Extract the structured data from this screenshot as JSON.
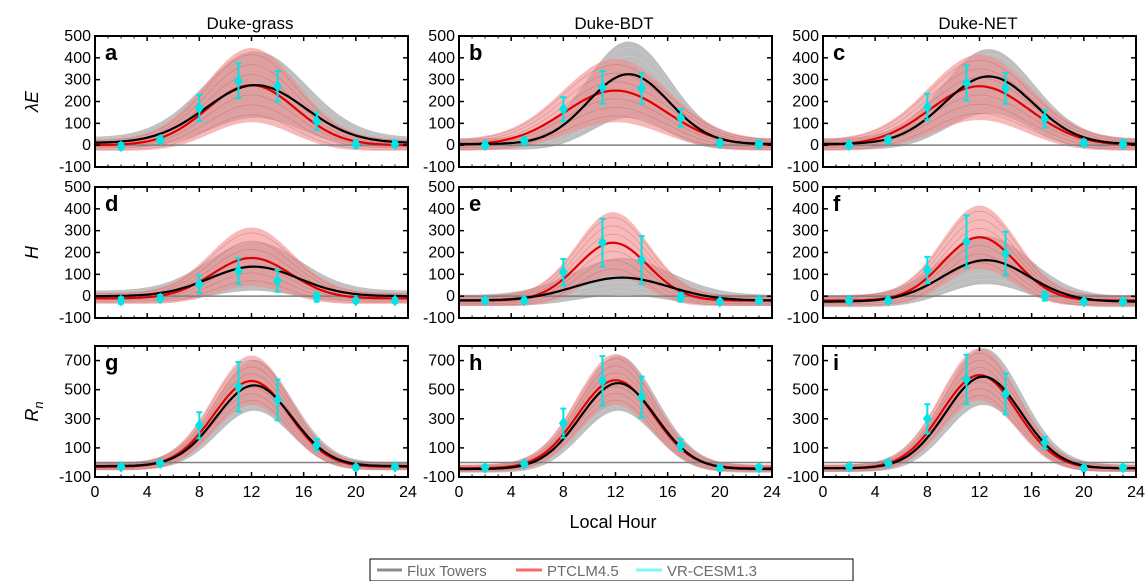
{
  "figure": {
    "column_titles": [
      "Duke-grass",
      "Duke-BDT",
      "Duke-NET"
    ],
    "xlabel": "Local Hour",
    "x_ticks": [
      0,
      4,
      8,
      12,
      16,
      20,
      24
    ],
    "xlim": [
      0,
      24
    ],
    "rows": [
      {
        "ylabel_main": "λE",
        "ylabel_sub": "",
        "ylim": [
          -100,
          500
        ],
        "y_ticks": [
          -100,
          0,
          100,
          200,
          300,
          400,
          500
        ],
        "zero_line": 0
      },
      {
        "ylabel_main": "H",
        "ylabel_sub": "",
        "ylim": [
          -100,
          500
        ],
        "y_ticks": [
          -100,
          0,
          100,
          200,
          300,
          400,
          500
        ],
        "zero_line": 0
      },
      {
        "ylabel_main": "R",
        "ylabel_sub": "n",
        "ylim": [
          -100,
          800
        ],
        "y_ticks": [
          -100,
          100,
          300,
          500,
          700
        ],
        "zero_line": 0
      }
    ],
    "legend": {
      "items": [
        {
          "label": "Flux Towers",
          "color": "#8c8c8c"
        },
        {
          "label": "PTCLM4.5",
          "color": "#ff6666"
        },
        {
          "label": "VR-CESM1.3",
          "color": "#7ff7f7"
        }
      ]
    },
    "colors": {
      "tower_line": "#000000",
      "tower_band": "#a8a8a8",
      "model_line": "#e00000",
      "model_band": "#f28a8a",
      "vr_marker": "#00e5e5",
      "zero_line": "#808080"
    }
  },
  "chart_data": [
    {
      "type": "line",
      "panel_label": "a",
      "column": "Duke-grass",
      "variable": "λE",
      "xlim": [
        0,
        24
      ],
      "ylim": [
        -100,
        500
      ],
      "tower": {
        "peak": 275,
        "peak_hour": 12.3,
        "half_width": 3.8,
        "night": 10,
        "band_low": 150,
        "band_high": 405
      },
      "ptclm": {
        "peak": 275,
        "peak_hour": 12.0,
        "half_width": 3.4,
        "night": 0,
        "band_low": 130,
        "band_high": 420
      },
      "vr_cesm": {
        "x": [
          2,
          5,
          8,
          11,
          14,
          17,
          20,
          23
        ],
        "y": [
          -5,
          25,
          170,
          295,
          270,
          110,
          5,
          5
        ],
        "err": [
          15,
          15,
          60,
          80,
          70,
          40,
          15,
          15
        ]
      }
    },
    {
      "type": "line",
      "panel_label": "b",
      "column": "Duke-BDT",
      "variable": "λE",
      "xlim": [
        0,
        24
      ],
      "ylim": [
        -100,
        500
      ],
      "tower": {
        "peak": 325,
        "peak_hour": 13.0,
        "half_width": 3.1,
        "night": 5,
        "band_low": 150,
        "band_high": 450
      },
      "ptclm": {
        "peak": 250,
        "peak_hour": 12.0,
        "half_width": 3.9,
        "night": 0,
        "band_low": 130,
        "band_high": 370
      },
      "vr_cesm": {
        "x": [
          2,
          5,
          8,
          11,
          14,
          17,
          20,
          23
        ],
        "y": [
          0,
          20,
          165,
          265,
          260,
          125,
          10,
          5
        ],
        "err": [
          15,
          15,
          55,
          75,
          70,
          40,
          15,
          15
        ]
      }
    },
    {
      "type": "line",
      "panel_label": "c",
      "column": "Duke-NET",
      "variable": "λE",
      "xlim": [
        0,
        24
      ],
      "ylim": [
        -100,
        500
      ],
      "tower": {
        "peak": 315,
        "peak_hour": 12.7,
        "half_width": 3.4,
        "night": 5,
        "band_low": 170,
        "band_high": 415
      },
      "ptclm": {
        "peak": 270,
        "peak_hour": 12.0,
        "half_width": 3.8,
        "night": 0,
        "band_low": 140,
        "band_high": 390
      },
      "vr_cesm": {
        "x": [
          2,
          5,
          8,
          11,
          14,
          17,
          20,
          23
        ],
        "y": [
          0,
          25,
          175,
          285,
          260,
          120,
          10,
          5
        ],
        "err": [
          15,
          15,
          60,
          80,
          70,
          40,
          15,
          15
        ]
      }
    },
    {
      "type": "line",
      "panel_label": "d",
      "column": "Duke-grass",
      "variable": "H",
      "xlim": [
        0,
        24
      ],
      "ylim": [
        -100,
        500
      ],
      "tower": {
        "peak": 135,
        "peak_hour": 12.2,
        "half_width": 3.4,
        "night": 0,
        "band_low": 50,
        "band_high": 225
      },
      "ptclm": {
        "peak": 175,
        "peak_hour": 12.0,
        "half_width": 3.0,
        "night": -10,
        "band_low": 70,
        "band_high": 290
      },
      "vr_cesm": {
        "x": [
          2,
          5,
          8,
          11,
          14,
          17,
          20,
          23
        ],
        "y": [
          -20,
          -10,
          55,
          115,
          70,
          -5,
          -20,
          -20
        ],
        "err": [
          15,
          15,
          40,
          60,
          50,
          20,
          10,
          10
        ]
      }
    },
    {
      "type": "line",
      "panel_label": "e",
      "column": "Duke-BDT",
      "variable": "H",
      "xlim": [
        0,
        24
      ],
      "ylim": [
        -100,
        500
      ],
      "tower": {
        "peak": 85,
        "peak_hour": 12.5,
        "half_width": 3.6,
        "night": -20,
        "band_low": 30,
        "band_high": 150
      },
      "ptclm": {
        "peak": 245,
        "peak_hour": 11.8,
        "half_width": 2.7,
        "night": -20,
        "band_low": 120,
        "band_high": 360
      },
      "vr_cesm": {
        "x": [
          2,
          5,
          8,
          11,
          14,
          17,
          20,
          23
        ],
        "y": [
          -20,
          -20,
          110,
          245,
          165,
          -5,
          -25,
          -20
        ],
        "err": [
          10,
          10,
          60,
          110,
          110,
          20,
          10,
          10
        ]
      }
    },
    {
      "type": "line",
      "panel_label": "f",
      "column": "Duke-NET",
      "variable": "H",
      "xlim": [
        0,
        24
      ],
      "ylim": [
        -100,
        500
      ],
      "tower": {
        "peak": 165,
        "peak_hour": 12.5,
        "half_width": 3.3,
        "night": -25,
        "band_low": 80,
        "band_high": 250
      },
      "ptclm": {
        "peak": 270,
        "peak_hour": 12.0,
        "half_width": 2.8,
        "night": -20,
        "band_low": 150,
        "band_high": 390
      },
      "vr_cesm": {
        "x": [
          2,
          5,
          8,
          11,
          14,
          17,
          20,
          23
        ],
        "y": [
          -20,
          -20,
          120,
          250,
          195,
          0,
          -25,
          -25
        ],
        "err": [
          10,
          10,
          60,
          120,
          100,
          20,
          10,
          10
        ]
      }
    },
    {
      "type": "line",
      "panel_label": "g",
      "column": "Duke-grass",
      "variable": "Rn",
      "xlim": [
        0,
        24
      ],
      "ylim": [
        -100,
        800
      ],
      "tower": {
        "peak": 530,
        "peak_hour": 12.2,
        "half_width": 2.9,
        "night": -25,
        "band_low": 380,
        "band_high": 680
      },
      "ptclm": {
        "peak": 560,
        "peak_hour": 12.0,
        "half_width": 2.9,
        "night": -30,
        "band_low": 420,
        "band_high": 710
      },
      "vr_cesm": {
        "x": [
          2,
          5,
          8,
          11,
          14,
          17,
          20,
          23
        ],
        "y": [
          -30,
          -5,
          255,
          520,
          430,
          120,
          -35,
          -30
        ],
        "err": [
          15,
          15,
          90,
          170,
          140,
          40,
          15,
          15
        ]
      }
    },
    {
      "type": "line",
      "panel_label": "h",
      "column": "Duke-BDT",
      "variable": "Rn",
      "xlim": [
        0,
        24
      ],
      "ylim": [
        -100,
        800
      ],
      "tower": {
        "peak": 545,
        "peak_hour": 12.2,
        "half_width": 2.9,
        "night": -45,
        "band_low": 380,
        "band_high": 710
      },
      "ptclm": {
        "peak": 565,
        "peak_hour": 12.0,
        "half_width": 2.9,
        "night": -40,
        "band_low": 420,
        "band_high": 720
      },
      "vr_cesm": {
        "x": [
          2,
          5,
          8,
          11,
          14,
          17,
          20,
          23
        ],
        "y": [
          -35,
          -10,
          270,
          560,
          450,
          120,
          -40,
          -35
        ],
        "err": [
          15,
          15,
          100,
          170,
          140,
          40,
          15,
          15
        ]
      }
    },
    {
      "type": "line",
      "panel_label": "i",
      "column": "Duke-NET",
      "variable": "Rn",
      "xlim": [
        0,
        24
      ],
      "ylim": [
        -100,
        800
      ],
      "tower": {
        "peak": 590,
        "peak_hour": 12.3,
        "half_width": 2.9,
        "night": -40,
        "band_low": 420,
        "band_high": 760
      },
      "ptclm": {
        "peak": 600,
        "peak_hour": 12.0,
        "half_width": 2.9,
        "night": -40,
        "band_low": 450,
        "band_high": 760
      },
      "vr_cesm": {
        "x": [
          2,
          5,
          8,
          11,
          14,
          17,
          20,
          23
        ],
        "y": [
          -30,
          -5,
          300,
          570,
          470,
          135,
          -40,
          -35
        ],
        "err": [
          15,
          15,
          100,
          170,
          140,
          40,
          15,
          15
        ]
      }
    }
  ]
}
